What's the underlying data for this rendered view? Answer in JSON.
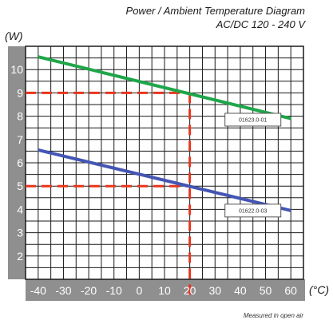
{
  "chart_data": {
    "type": "line",
    "title": "Power / Ambient Temperature Diagram",
    "subtitle": "AC/DC 120 - 240 V",
    "ylabel": "(W)",
    "xlabel": "(°C)",
    "xlim": [
      -45,
      65
    ],
    "ylim": [
      1,
      11
    ],
    "x_ticks": [
      -40,
      -30,
      -20,
      -10,
      0,
      10,
      20,
      30,
      40,
      50,
      60
    ],
    "y_ticks": [
      2,
      3,
      4,
      5,
      6,
      7,
      8,
      9,
      10
    ],
    "grid": true,
    "series": [
      {
        "name": "01623.0-01",
        "color": "#1fa64a",
        "x": [
          -40,
          60
        ],
        "y": [
          10.55,
          7.9
        ]
      },
      {
        "name": "01622.0-03",
        "color": "#4455b3",
        "x": [
          -40,
          60
        ],
        "y": [
          6.55,
          3.95
        ]
      }
    ],
    "reference_lines": [
      {
        "x": 20,
        "y": 9,
        "color": "#e8361e"
      },
      {
        "x": 20,
        "y": 5,
        "color": "#e8361e"
      }
    ],
    "annotation": "Measured in open air"
  }
}
